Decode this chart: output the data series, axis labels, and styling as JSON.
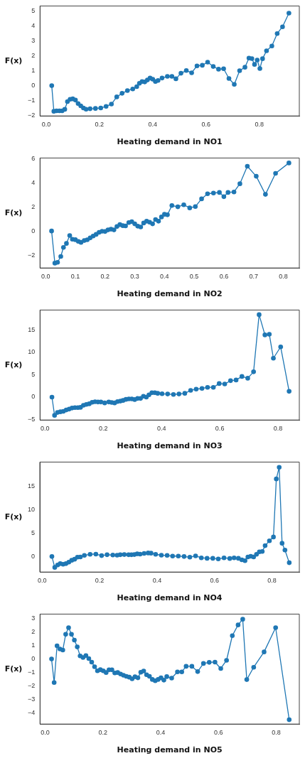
{
  "chart_data": [
    {
      "type": "line",
      "xlabel": "Heating demand in NO1",
      "ylabel": "F(x)",
      "marker": "circle",
      "line_style": "solid",
      "grid": false,
      "legend": false,
      "xlim": [
        -0.023,
        0.95
      ],
      "ylim": [
        -2.02,
        5.32
      ],
      "xticks": [
        {
          "value": 0,
          "label": "0.0"
        },
        {
          "value": 0.2,
          "label": "0.2"
        },
        {
          "value": 0.4,
          "label": "0.4"
        },
        {
          "value": 0.6,
          "label": "0.6"
        },
        {
          "value": 0.8,
          "label": "0.8"
        }
      ],
      "yticks": [
        {
          "value": -2,
          "label": "−2"
        },
        {
          "value": -1,
          "label": "−1"
        },
        0,
        1,
        2,
        3,
        4,
        5
      ],
      "series": [
        {
          "color": "#1f77b4",
          "x": [
            0.021,
            0.029,
            0.039,
            0.05,
            0.06,
            0.07,
            0.08,
            0.09,
            0.1,
            0.11,
            0.12,
            0.13,
            0.14,
            0.15,
            0.165,
            0.185,
            0.205,
            0.225,
            0.245,
            0.265,
            0.285,
            0.305,
            0.325,
            0.34,
            0.35,
            0.36,
            0.37,
            0.38,
            0.39,
            0.4,
            0.41,
            0.42,
            0.435,
            0.455,
            0.472,
            0.487,
            0.506,
            0.526,
            0.546,
            0.566,
            0.586,
            0.606,
            0.627,
            0.647,
            0.666,
            0.686,
            0.706,
            0.726,
            0.746,
            0.761,
            0.772,
            0.782,
            0.792,
            0.802,
            0.812,
            0.827,
            0.847,
            0.867,
            0.887,
            0.911
          ],
          "values": [
            0,
            -1.71,
            -1.68,
            -1.68,
            -1.68,
            -1.58,
            -1.06,
            -0.91,
            -0.88,
            -0.96,
            -1.19,
            -1.35,
            -1.49,
            -1.57,
            -1.54,
            -1.52,
            -1.49,
            -1.38,
            -1.23,
            -0.75,
            -0.51,
            -0.33,
            -0.22,
            -0.07,
            0.16,
            0.28,
            0.25,
            0.38,
            0.51,
            0.43,
            0.28,
            0.35,
            0.51,
            0.62,
            0.62,
            0.46,
            0.83,
            1.01,
            0.86,
            1.32,
            1.36,
            1.57,
            1.28,
            1.1,
            1.13,
            0.48,
            0.09,
            1.0,
            1.23,
            1.84,
            1.81,
            1.42,
            1.71,
            1.14,
            1.8,
            2.33,
            2.65,
            3.48,
            3.93,
            4.84
          ]
        }
      ]
    },
    {
      "type": "line",
      "xlabel": "Heating demand in NO2",
      "ylabel": "F(x)",
      "marker": "circle",
      "line_style": "solid",
      "grid": false,
      "legend": false,
      "xlim": [
        -0.019,
        0.854
      ],
      "ylim": [
        -3.06,
        6.04
      ],
      "xticks": [
        {
          "value": 0,
          "label": "0.0"
        },
        {
          "value": 0.1,
          "label": "0.1"
        },
        {
          "value": 0.2,
          "label": "0.2"
        },
        {
          "value": 0.3,
          "label": "0.3"
        },
        {
          "value": 0.4,
          "label": "0.4"
        },
        {
          "value": 0.5,
          "label": "0.5"
        },
        {
          "value": 0.6,
          "label": "0.6"
        },
        {
          "value": 0.7,
          "label": "0.7"
        },
        {
          "value": 0.8,
          "label": "0.8"
        }
      ],
      "yticks": [
        {
          "value": -2,
          "label": "−2"
        },
        0,
        2,
        4,
        6
      ],
      "series": [
        {
          "color": "#1f77b4",
          "x": [
            0.02,
            0.031,
            0.04,
            0.051,
            0.06,
            0.07,
            0.081,
            0.09,
            0.1,
            0.11,
            0.119,
            0.13,
            0.14,
            0.15,
            0.16,
            0.17,
            0.18,
            0.19,
            0.2,
            0.21,
            0.22,
            0.23,
            0.24,
            0.25,
            0.26,
            0.269,
            0.28,
            0.29,
            0.3,
            0.31,
            0.32,
            0.33,
            0.34,
            0.35,
            0.36,
            0.37,
            0.38,
            0.39,
            0.4,
            0.41,
            0.425,
            0.445,
            0.465,
            0.485,
            0.504,
            0.525,
            0.545,
            0.565,
            0.585,
            0.6,
            0.614,
            0.634,
            0.654,
            0.679,
            0.709,
            0.74,
            0.774,
            0.819
          ],
          "values": [
            0,
            -2.66,
            -2.59,
            -2.11,
            -1.36,
            -1.03,
            -0.37,
            -0.68,
            -0.72,
            -0.86,
            -0.94,
            -0.79,
            -0.73,
            -0.57,
            -0.42,
            -0.28,
            -0.11,
            -0.02,
            -0.04,
            0.09,
            0.15,
            0.09,
            0.37,
            0.53,
            0.44,
            0.42,
            0.7,
            0.77,
            0.59,
            0.4,
            0.33,
            0.66,
            0.81,
            0.73,
            0.59,
            0.95,
            0.81,
            1.16,
            1.38,
            1.34,
            2.11,
            2.0,
            2.17,
            1.91,
            2.02,
            2.66,
            3.08,
            3.14,
            3.19,
            2.84,
            3.19,
            3.23,
            3.91,
            5.36,
            4.53,
            3.03,
            4.77,
            5.63
          ]
        }
      ]
    },
    {
      "type": "line",
      "xlabel": "Heating demand in NO3",
      "ylabel": "F(x)",
      "marker": "circle",
      "line_style": "solid",
      "grid": false,
      "legend": false,
      "xlim": [
        -0.017,
        0.873
      ],
      "ylim": [
        -5.1,
        19.4
      ],
      "xticks": [
        {
          "value": 0,
          "label": "0.0"
        },
        {
          "value": 0.2,
          "label": "0.2"
        },
        {
          "value": 0.4,
          "label": "0.4"
        },
        {
          "value": 0.6,
          "label": "0.6"
        },
        {
          "value": 0.8,
          "label": "0.8"
        }
      ],
      "yticks": [
        {
          "value": -5,
          "label": "−5"
        },
        0,
        5,
        10,
        15
      ],
      "series": [
        {
          "color": "#1f77b4",
          "x": [
            0.024,
            0.033,
            0.043,
            0.053,
            0.063,
            0.073,
            0.083,
            0.093,
            0.103,
            0.113,
            0.122,
            0.132,
            0.142,
            0.152,
            0.162,
            0.172,
            0.182,
            0.192,
            0.205,
            0.219,
            0.229,
            0.239,
            0.249,
            0.259,
            0.268,
            0.278,
            0.288,
            0.298,
            0.308,
            0.318,
            0.328,
            0.338,
            0.348,
            0.357,
            0.367,
            0.377,
            0.387,
            0.402,
            0.421,
            0.441,
            0.46,
            0.48,
            0.5,
            0.519,
            0.539,
            0.558,
            0.578,
            0.598,
            0.617,
            0.637,
            0.656,
            0.676,
            0.696,
            0.716,
            0.735,
            0.755,
            0.77,
            0.784,
            0.809,
            0.838
          ],
          "values": [
            0,
            -4.06,
            -3.42,
            -3.27,
            -3.17,
            -2.87,
            -2.67,
            -2.43,
            -2.33,
            -2.33,
            -2.28,
            -1.83,
            -1.63,
            -1.49,
            -1.14,
            -1.04,
            -1.09,
            -1.09,
            -1.29,
            -1.09,
            -1.19,
            -1.29,
            -0.99,
            -0.89,
            -0.74,
            -0.5,
            -0.4,
            -0.4,
            -0.54,
            -0.3,
            -0.3,
            0.2,
            0,
            0.5,
            0.99,
            0.99,
            0.84,
            0.74,
            0.69,
            0.59,
            0.69,
            0.84,
            1.49,
            1.78,
            1.93,
            2.18,
            2.18,
            3.02,
            2.92,
            3.66,
            3.81,
            4.6,
            4.21,
            5.64,
            18.37,
            13.86,
            14.01,
            8.66,
            11.19,
            1.29
          ]
        }
      ]
    },
    {
      "type": "line",
      "xlabel": "Heating demand in NO4",
      "ylabel": "F(x)",
      "marker": "circle",
      "line_style": "solid",
      "grid": false,
      "legend": false,
      "xlim": [
        -0.008,
        0.895
      ],
      "ylim": [
        -3.3,
        20.1
      ],
      "xticks": [
        {
          "value": 0,
          "label": "0.0"
        },
        {
          "value": 0.2,
          "label": "0.2"
        },
        {
          "value": 0.4,
          "label": "0.4"
        },
        {
          "value": 0.6,
          "label": "0.6"
        },
        {
          "value": 0.8,
          "label": "0.8"
        }
      ],
      "yticks": [
        0,
        5,
        10,
        15
      ],
      "series": [
        {
          "color": "#1f77b4",
          "x": [
            0.034,
            0.044,
            0.054,
            0.063,
            0.073,
            0.083,
            0.093,
            0.103,
            0.113,
            0.123,
            0.133,
            0.147,
            0.167,
            0.187,
            0.207,
            0.226,
            0.246,
            0.261,
            0.272,
            0.286,
            0.301,
            0.311,
            0.321,
            0.331,
            0.341,
            0.355,
            0.369,
            0.379,
            0.395,
            0.415,
            0.435,
            0.454,
            0.474,
            0.494,
            0.514,
            0.534,
            0.554,
            0.574,
            0.594,
            0.613,
            0.633,
            0.653,
            0.668,
            0.683,
            0.695,
            0.706,
            0.716,
            0.726,
            0.736,
            0.746,
            0.756,
            0.766,
            0.776,
            0.791,
            0.805,
            0.815,
            0.825,
            0.835,
            0.845,
            0.86
          ],
          "values": [
            0,
            -2.31,
            -1.79,
            -1.51,
            -1.65,
            -1.51,
            -1.18,
            -0.8,
            -0.57,
            -0.14,
            -0.09,
            0.24,
            0.47,
            0.52,
            0.19,
            0.38,
            0.33,
            0.28,
            0.38,
            0.42,
            0.38,
            0.38,
            0.42,
            0.57,
            0.52,
            0.66,
            0.75,
            0.71,
            0.47,
            0.28,
            0.24,
            0.09,
            0.09,
            0,
            -0.14,
            0.14,
            -0.28,
            -0.38,
            -0.38,
            -0.52,
            -0.28,
            -0.42,
            -0.28,
            -0.38,
            -0.71,
            -0.9,
            -0.09,
            0.05,
            -0.09,
            0.47,
            0.99,
            1.08,
            2.31,
            3.35,
            4.15,
            16.51,
            19.0,
            2.83,
            1.37,
            -1.32
          ]
        }
      ]
    },
    {
      "type": "line",
      "xlabel": "Heating demand in NO5",
      "ylabel": "F(x)",
      "marker": "circle",
      "line_style": "solid",
      "grid": false,
      "legend": false,
      "xlim": [
        -0.018,
        0.88
      ],
      "ylim": [
        -4.8,
        3.31
      ],
      "xticks": [
        {
          "value": 0,
          "label": "0.0"
        },
        {
          "value": 0.2,
          "label": "0.2"
        },
        {
          "value": 0.4,
          "label": "0.4"
        },
        {
          "value": 0.6,
          "label": "0.6"
        },
        {
          "value": 0.8,
          "label": "0.8"
        }
      ],
      "yticks": [
        {
          "value": -4,
          "label": "−4"
        },
        {
          "value": -3,
          "label": "−3"
        },
        {
          "value": -2,
          "label": "−2"
        },
        {
          "value": -1,
          "label": "−1"
        },
        0,
        1,
        2,
        3
      ],
      "series": [
        {
          "color": "#1f77b4",
          "x": [
            0.022,
            0.031,
            0.041,
            0.051,
            0.061,
            0.071,
            0.081,
            0.091,
            0.101,
            0.111,
            0.121,
            0.131,
            0.141,
            0.151,
            0.161,
            0.171,
            0.181,
            0.191,
            0.201,
            0.211,
            0.221,
            0.231,
            0.241,
            0.251,
            0.261,
            0.271,
            0.281,
            0.291,
            0.301,
            0.311,
            0.321,
            0.331,
            0.341,
            0.351,
            0.361,
            0.371,
            0.381,
            0.391,
            0.401,
            0.411,
            0.421,
            0.438,
            0.458,
            0.473,
            0.488,
            0.508,
            0.528,
            0.548,
            0.568,
            0.588,
            0.608,
            0.628,
            0.648,
            0.668,
            0.684,
            0.698,
            0.722,
            0.758,
            0.798,
            0.845
          ],
          "values": [
            0,
            -1.74,
            0.97,
            0.74,
            0.66,
            1.82,
            2.31,
            1.82,
            1.39,
            0.89,
            0.23,
            0.11,
            0.25,
            0.03,
            -0.23,
            -0.57,
            -0.87,
            -0.79,
            -0.87,
            -1.0,
            -0.8,
            -0.8,
            -1.03,
            -1.0,
            -1.11,
            -1.2,
            -1.28,
            -1.34,
            -1.46,
            -1.31,
            -1.39,
            -0.98,
            -0.89,
            -1.16,
            -1.28,
            -1.51,
            -1.61,
            -1.51,
            -1.39,
            -1.56,
            -1.3,
            -1.41,
            -0.95,
            -0.95,
            -0.54,
            -0.54,
            -0.93,
            -0.33,
            -0.25,
            -0.23,
            -0.7,
            -0.1,
            1.72,
            2.51,
            2.93,
            -1.52,
            -0.61,
            0.52,
            2.31,
            -4.48
          ]
        }
      ]
    }
  ]
}
